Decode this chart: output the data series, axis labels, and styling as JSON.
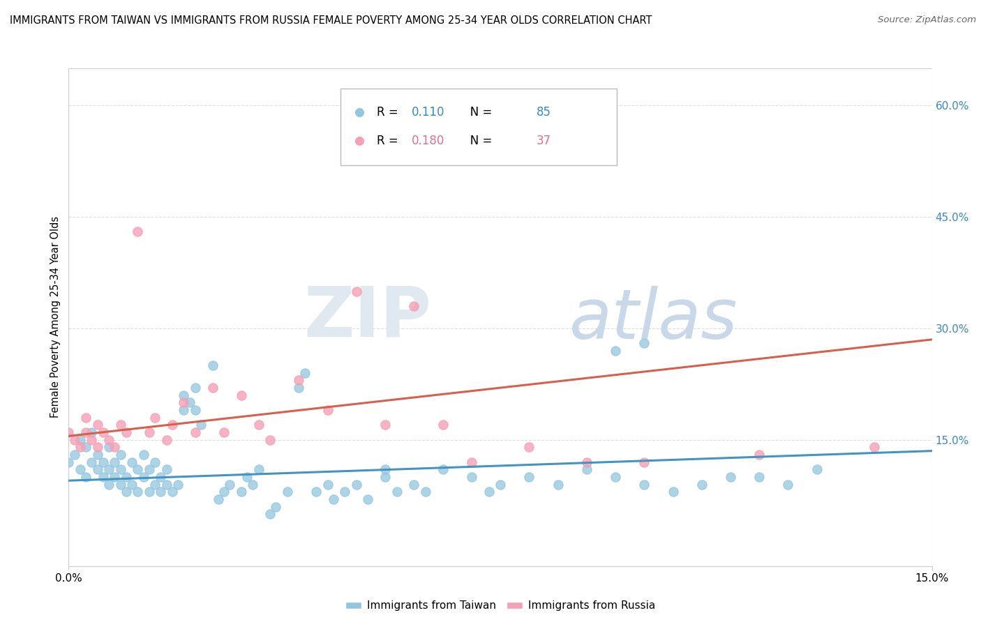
{
  "title": "IMMIGRANTS FROM TAIWAN VS IMMIGRANTS FROM RUSSIA FEMALE POVERTY AMONG 25-34 YEAR OLDS CORRELATION CHART",
  "source": "Source: ZipAtlas.com",
  "ylabel": "Female Poverty Among 25-34 Year Olds",
  "xlim": [
    0.0,
    0.15
  ],
  "ylim": [
    -0.02,
    0.65
  ],
  "yticks": [
    0.15,
    0.3,
    0.45,
    0.6
  ],
  "ytick_labels": [
    "15.0%",
    "30.0%",
    "45.0%",
    "60.0%"
  ],
  "taiwan_color": "#92c5de",
  "russia_color": "#f4a0b5",
  "taiwan_line_color": "#4393c3",
  "russia_line_color": "#d6604d",
  "taiwan_R": "0.110",
  "taiwan_N": "85",
  "russia_R": "0.180",
  "russia_N": "37",
  "taiwan_scatter_x": [
    0.0,
    0.001,
    0.002,
    0.002,
    0.003,
    0.003,
    0.004,
    0.004,
    0.005,
    0.005,
    0.006,
    0.006,
    0.007,
    0.007,
    0.007,
    0.008,
    0.008,
    0.009,
    0.009,
    0.009,
    0.01,
    0.01,
    0.011,
    0.011,
    0.012,
    0.012,
    0.013,
    0.013,
    0.014,
    0.014,
    0.015,
    0.015,
    0.016,
    0.016,
    0.017,
    0.017,
    0.018,
    0.019,
    0.02,
    0.02,
    0.021,
    0.022,
    0.022,
    0.023,
    0.025,
    0.026,
    0.027,
    0.028,
    0.03,
    0.031,
    0.032,
    0.033,
    0.035,
    0.036,
    0.038,
    0.04,
    0.041,
    0.043,
    0.045,
    0.046,
    0.048,
    0.05,
    0.052,
    0.055,
    0.055,
    0.057,
    0.06,
    0.062,
    0.065,
    0.07,
    0.073,
    0.075,
    0.08,
    0.085,
    0.09,
    0.095,
    0.1,
    0.105,
    0.11,
    0.115,
    0.12,
    0.125,
    0.13,
    0.095,
    0.1
  ],
  "taiwan_scatter_y": [
    0.12,
    0.13,
    0.11,
    0.15,
    0.1,
    0.14,
    0.12,
    0.16,
    0.11,
    0.13,
    0.1,
    0.12,
    0.09,
    0.11,
    0.14,
    0.1,
    0.12,
    0.09,
    0.11,
    0.13,
    0.08,
    0.1,
    0.09,
    0.12,
    0.08,
    0.11,
    0.1,
    0.13,
    0.08,
    0.11,
    0.09,
    0.12,
    0.08,
    0.1,
    0.09,
    0.11,
    0.08,
    0.09,
    0.19,
    0.21,
    0.2,
    0.19,
    0.22,
    0.17,
    0.25,
    0.07,
    0.08,
    0.09,
    0.08,
    0.1,
    0.09,
    0.11,
    0.05,
    0.06,
    0.08,
    0.22,
    0.24,
    0.08,
    0.09,
    0.07,
    0.08,
    0.09,
    0.07,
    0.1,
    0.11,
    0.08,
    0.09,
    0.08,
    0.11,
    0.1,
    0.08,
    0.09,
    0.1,
    0.09,
    0.11,
    0.1,
    0.09,
    0.08,
    0.09,
    0.1,
    0.1,
    0.09,
    0.11,
    0.27,
    0.28
  ],
  "russia_scatter_x": [
    0.0,
    0.001,
    0.002,
    0.003,
    0.003,
    0.004,
    0.005,
    0.005,
    0.006,
    0.007,
    0.008,
    0.009,
    0.01,
    0.012,
    0.014,
    0.015,
    0.017,
    0.018,
    0.02,
    0.022,
    0.025,
    0.027,
    0.03,
    0.033,
    0.035,
    0.04,
    0.045,
    0.05,
    0.055,
    0.06,
    0.065,
    0.07,
    0.08,
    0.09,
    0.1,
    0.12,
    0.14
  ],
  "russia_scatter_y": [
    0.16,
    0.15,
    0.14,
    0.16,
    0.18,
    0.15,
    0.17,
    0.14,
    0.16,
    0.15,
    0.14,
    0.17,
    0.16,
    0.43,
    0.16,
    0.18,
    0.15,
    0.17,
    0.2,
    0.16,
    0.22,
    0.16,
    0.21,
    0.17,
    0.15,
    0.23,
    0.19,
    0.35,
    0.17,
    0.33,
    0.17,
    0.12,
    0.14,
    0.12,
    0.12,
    0.13,
    0.14
  ],
  "taiwan_trend_x": [
    0.0,
    0.15
  ],
  "taiwan_trend_y": [
    0.095,
    0.135
  ],
  "russia_trend_x": [
    0.0,
    0.15
  ],
  "russia_trend_y": [
    0.155,
    0.285
  ],
  "watermark_zip": "ZIP",
  "watermark_atlas": "atlas",
  "bottom_legend_labels": [
    "Immigrants from Taiwan",
    "Immigrants from Russia"
  ],
  "grid_color": "#dddddd",
  "spine_color": "#cccccc"
}
